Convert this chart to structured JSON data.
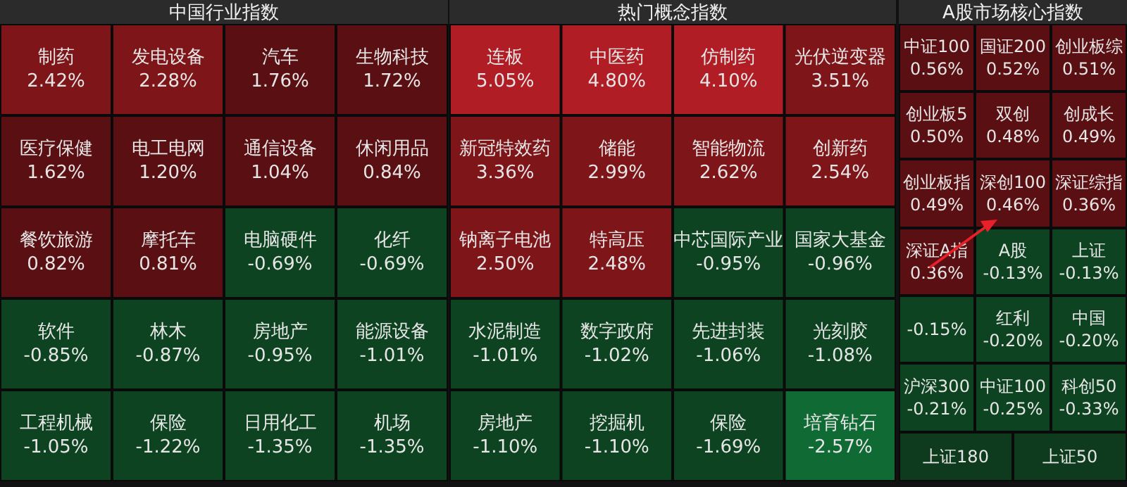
{
  "chart_data": [
    {
      "type": "other",
      "title": "中国行业指数",
      "categories": [
        "制药",
        "发电设备",
        "汽车",
        "生物科技",
        "医疗保健",
        "电工电网",
        "通信设备",
        "休闲用品",
        "餐饮旅游",
        "摩托车",
        "电脑硬件",
        "化纤",
        "软件",
        "林木",
        "房地产",
        "能源设备",
        "工程机械",
        "保险",
        "日用化工",
        "机场"
      ],
      "values": [
        2.42,
        2.28,
        1.76,
        1.72,
        1.62,
        1.2,
        1.04,
        0.84,
        0.82,
        0.81,
        -0.69,
        -0.69,
        -0.85,
        -0.87,
        -0.95,
        -1.01,
        -1.05,
        -1.22,
        -1.35,
        -1.35
      ],
      "value_labels": [
        "2.42%",
        "2.28%",
        "1.76%",
        "1.72%",
        "1.62%",
        "1.20%",
        "1.04%",
        "0.84%",
        "0.82%",
        "0.81%",
        "-0.69%",
        "-0.69%",
        "-0.85%",
        "-0.87%",
        "-0.95%",
        "-1.01%",
        "-1.05%",
        "-1.22%",
        "-1.35%",
        "-1.35%"
      ]
    },
    {
      "type": "other",
      "title": "热门概念指数",
      "categories": [
        "连板",
        "中医药",
        "仿制药",
        "光伏逆变器",
        "新冠特效药",
        "储能",
        "智能物流",
        "创新药",
        "钠离子电池",
        "特高压",
        "中芯国际产业",
        "国家大基金",
        "水泥制造",
        "数字政府",
        "先进封装",
        "光刻胶",
        "房地产",
        "挖掘机",
        "保险",
        "培育钻石"
      ],
      "values": [
        5.05,
        4.8,
        4.1,
        3.51,
        3.36,
        2.99,
        2.62,
        2.54,
        2.5,
        2.48,
        -0.95,
        -0.96,
        -1.01,
        -1.02,
        -1.06,
        -1.08,
        -1.1,
        -1.1,
        -1.69,
        -2.57
      ],
      "value_labels": [
        "5.05%",
        "4.80%",
        "4.10%",
        "3.51%",
        "3.36%",
        "2.99%",
        "2.62%",
        "2.54%",
        "2.50%",
        "2.48%",
        "-0.95%",
        "-0.96%",
        "-1.01%",
        "-1.02%",
        "-1.06%",
        "-1.08%",
        "-1.10%",
        "-1.10%",
        "-1.69%",
        "-2.57%"
      ]
    },
    {
      "type": "other",
      "title": "A股市场核心指数",
      "categories": [
        "中证100",
        "国证200",
        "创业板综",
        "创业板5",
        "双创",
        "创成长",
        "创业板指",
        "深创100",
        "深证综指",
        "深证A指",
        "A股",
        "上证",
        null,
        "红利",
        "中国",
        "沪深300",
        "中证100",
        "科创50",
        "上证180",
        "上证50"
      ],
      "values": [
        0.56,
        0.52,
        0.51,
        0.5,
        0.48,
        0.49,
        0.49,
        0.46,
        0.36,
        0.36,
        -0.13,
        -0.13,
        -0.15,
        -0.2,
        -0.2,
        -0.21,
        -0.25,
        -0.33,
        null,
        null
      ],
      "value_labels": [
        "0.56%",
        "0.52%",
        "0.51%",
        "0.50%",
        "0.48%",
        "0.49%",
        "0.49%",
        "0.46%",
        "0.36%",
        "0.36%",
        "-0.13%",
        "-0.13%",
        "-0.15%",
        "-0.20%",
        "-0.20%",
        "-0.21%",
        "-0.25%",
        "-0.33%",
        null,
        null
      ]
    }
  ]
}
